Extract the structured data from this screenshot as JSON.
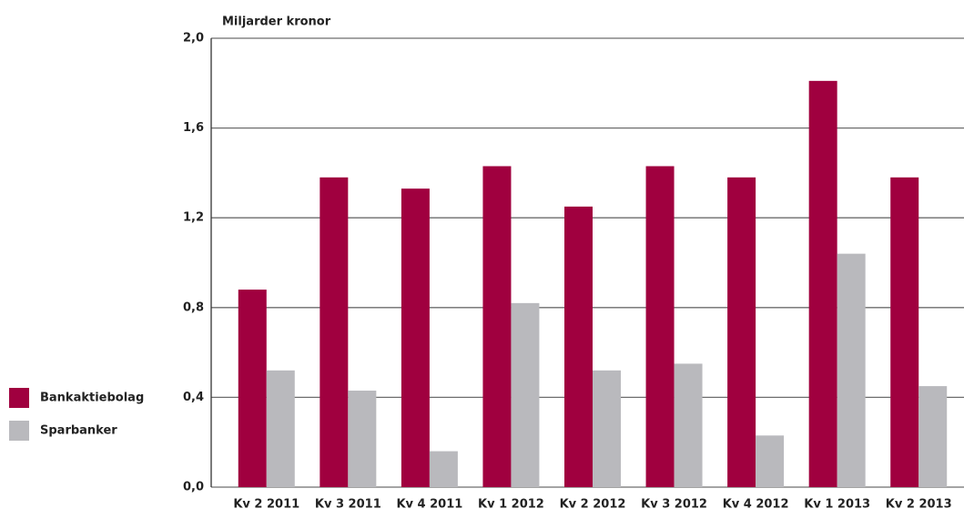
{
  "chart_data": {
    "type": "bar",
    "y_label": "Miljarder kronor",
    "categories": [
      "Kv 2 2011",
      "Kv 3 2011",
      "Kv 4 2011",
      "Kv 1 2012",
      "Kv 2 2012",
      "Kv 3 2012",
      "Kv 4 2012",
      "Kv 1 2013",
      "Kv 2 2013"
    ],
    "series": [
      {
        "name": "Bankaktiebolag",
        "color": "#a0003f",
        "values": [
          0.88,
          1.38,
          1.33,
          1.43,
          1.25,
          1.43,
          1.38,
          1.81,
          1.38
        ]
      },
      {
        "name": "Sparbanker",
        "color": "#b9b9bd",
        "values": [
          0.52,
          0.43,
          0.16,
          0.82,
          0.52,
          0.55,
          0.23,
          1.04,
          0.45
        ]
      }
    ],
    "ylim": [
      0,
      2.0
    ],
    "yticks": [
      {
        "value": 0,
        "label": "0,0"
      },
      {
        "value": 0.4,
        "label": "0,4"
      },
      {
        "value": 0.8,
        "label": "0,8"
      },
      {
        "value": 1.2,
        "label": "1,2"
      },
      {
        "value": 1.6,
        "label": "1,6"
      },
      {
        "value": 2.0,
        "label": "2,0"
      }
    ],
    "grid": true,
    "legend": "left"
  }
}
